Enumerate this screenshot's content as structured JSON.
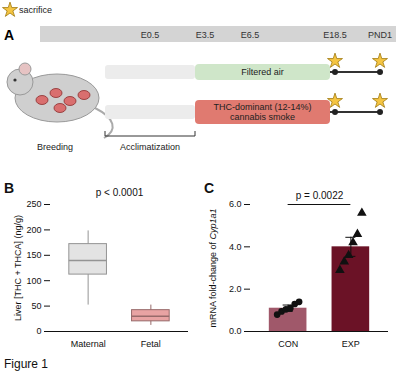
{
  "figure_label": "Figure 1",
  "diagram": {
    "label": "A",
    "legend_label": "sacrifice",
    "timeline": [
      "E0.5",
      "E3.5",
      "E6.5",
      "E18.5",
      "PND1"
    ],
    "rows": [
      {
        "label": "Filtered air",
        "color": "#cfe6c9"
      },
      {
        "label": "THC-dominant (12-14%) cannabis smoke",
        "color": "#e07a70"
      }
    ],
    "phases": {
      "breeding": "Breeding",
      "acclimatization": "Acclimatization"
    }
  },
  "chart_data": [
    {
      "type": "box",
      "label": "B",
      "categories": [
        "Maternal",
        "Fetal"
      ],
      "ylabel": "Liver [THC + THCA] (ng/g)",
      "ylim": [
        0,
        250
      ],
      "yticks": [
        0,
        50,
        100,
        150,
        200,
        250
      ],
      "min": [
        52,
        12
      ],
      "q1": [
        112,
        20
      ],
      "median": [
        140,
        30
      ],
      "q3": [
        172,
        42
      ],
      "max": [
        198,
        52
      ],
      "colors": [
        "#e3e3e3",
        "#e8a3a3"
      ],
      "annotation": "p < 0.0001"
    },
    {
      "type": "bar",
      "label": "C",
      "categories": [
        "CON",
        "EXP"
      ],
      "ylabel": "mRNA fold-change of Cyp1a1",
      "ylabel_italic": "Cyp1a1",
      "ylim": [
        0,
        6
      ],
      "yticks": [
        0,
        2,
        4,
        6
      ],
      "values": [
        1.1,
        4.0
      ],
      "errors": [
        0.15,
        0.45
      ],
      "points": [
        [
          0.8,
          0.95,
          1.05,
          1.1,
          1.3,
          1.4
        ],
        [
          2.9,
          3.3,
          3.6,
          4.2,
          4.6,
          5.6
        ]
      ],
      "markers": [
        "circle",
        "triangle"
      ],
      "colors": [
        "#a0586a",
        "#6b1226"
      ],
      "annotation": "p = 0.0022"
    }
  ]
}
